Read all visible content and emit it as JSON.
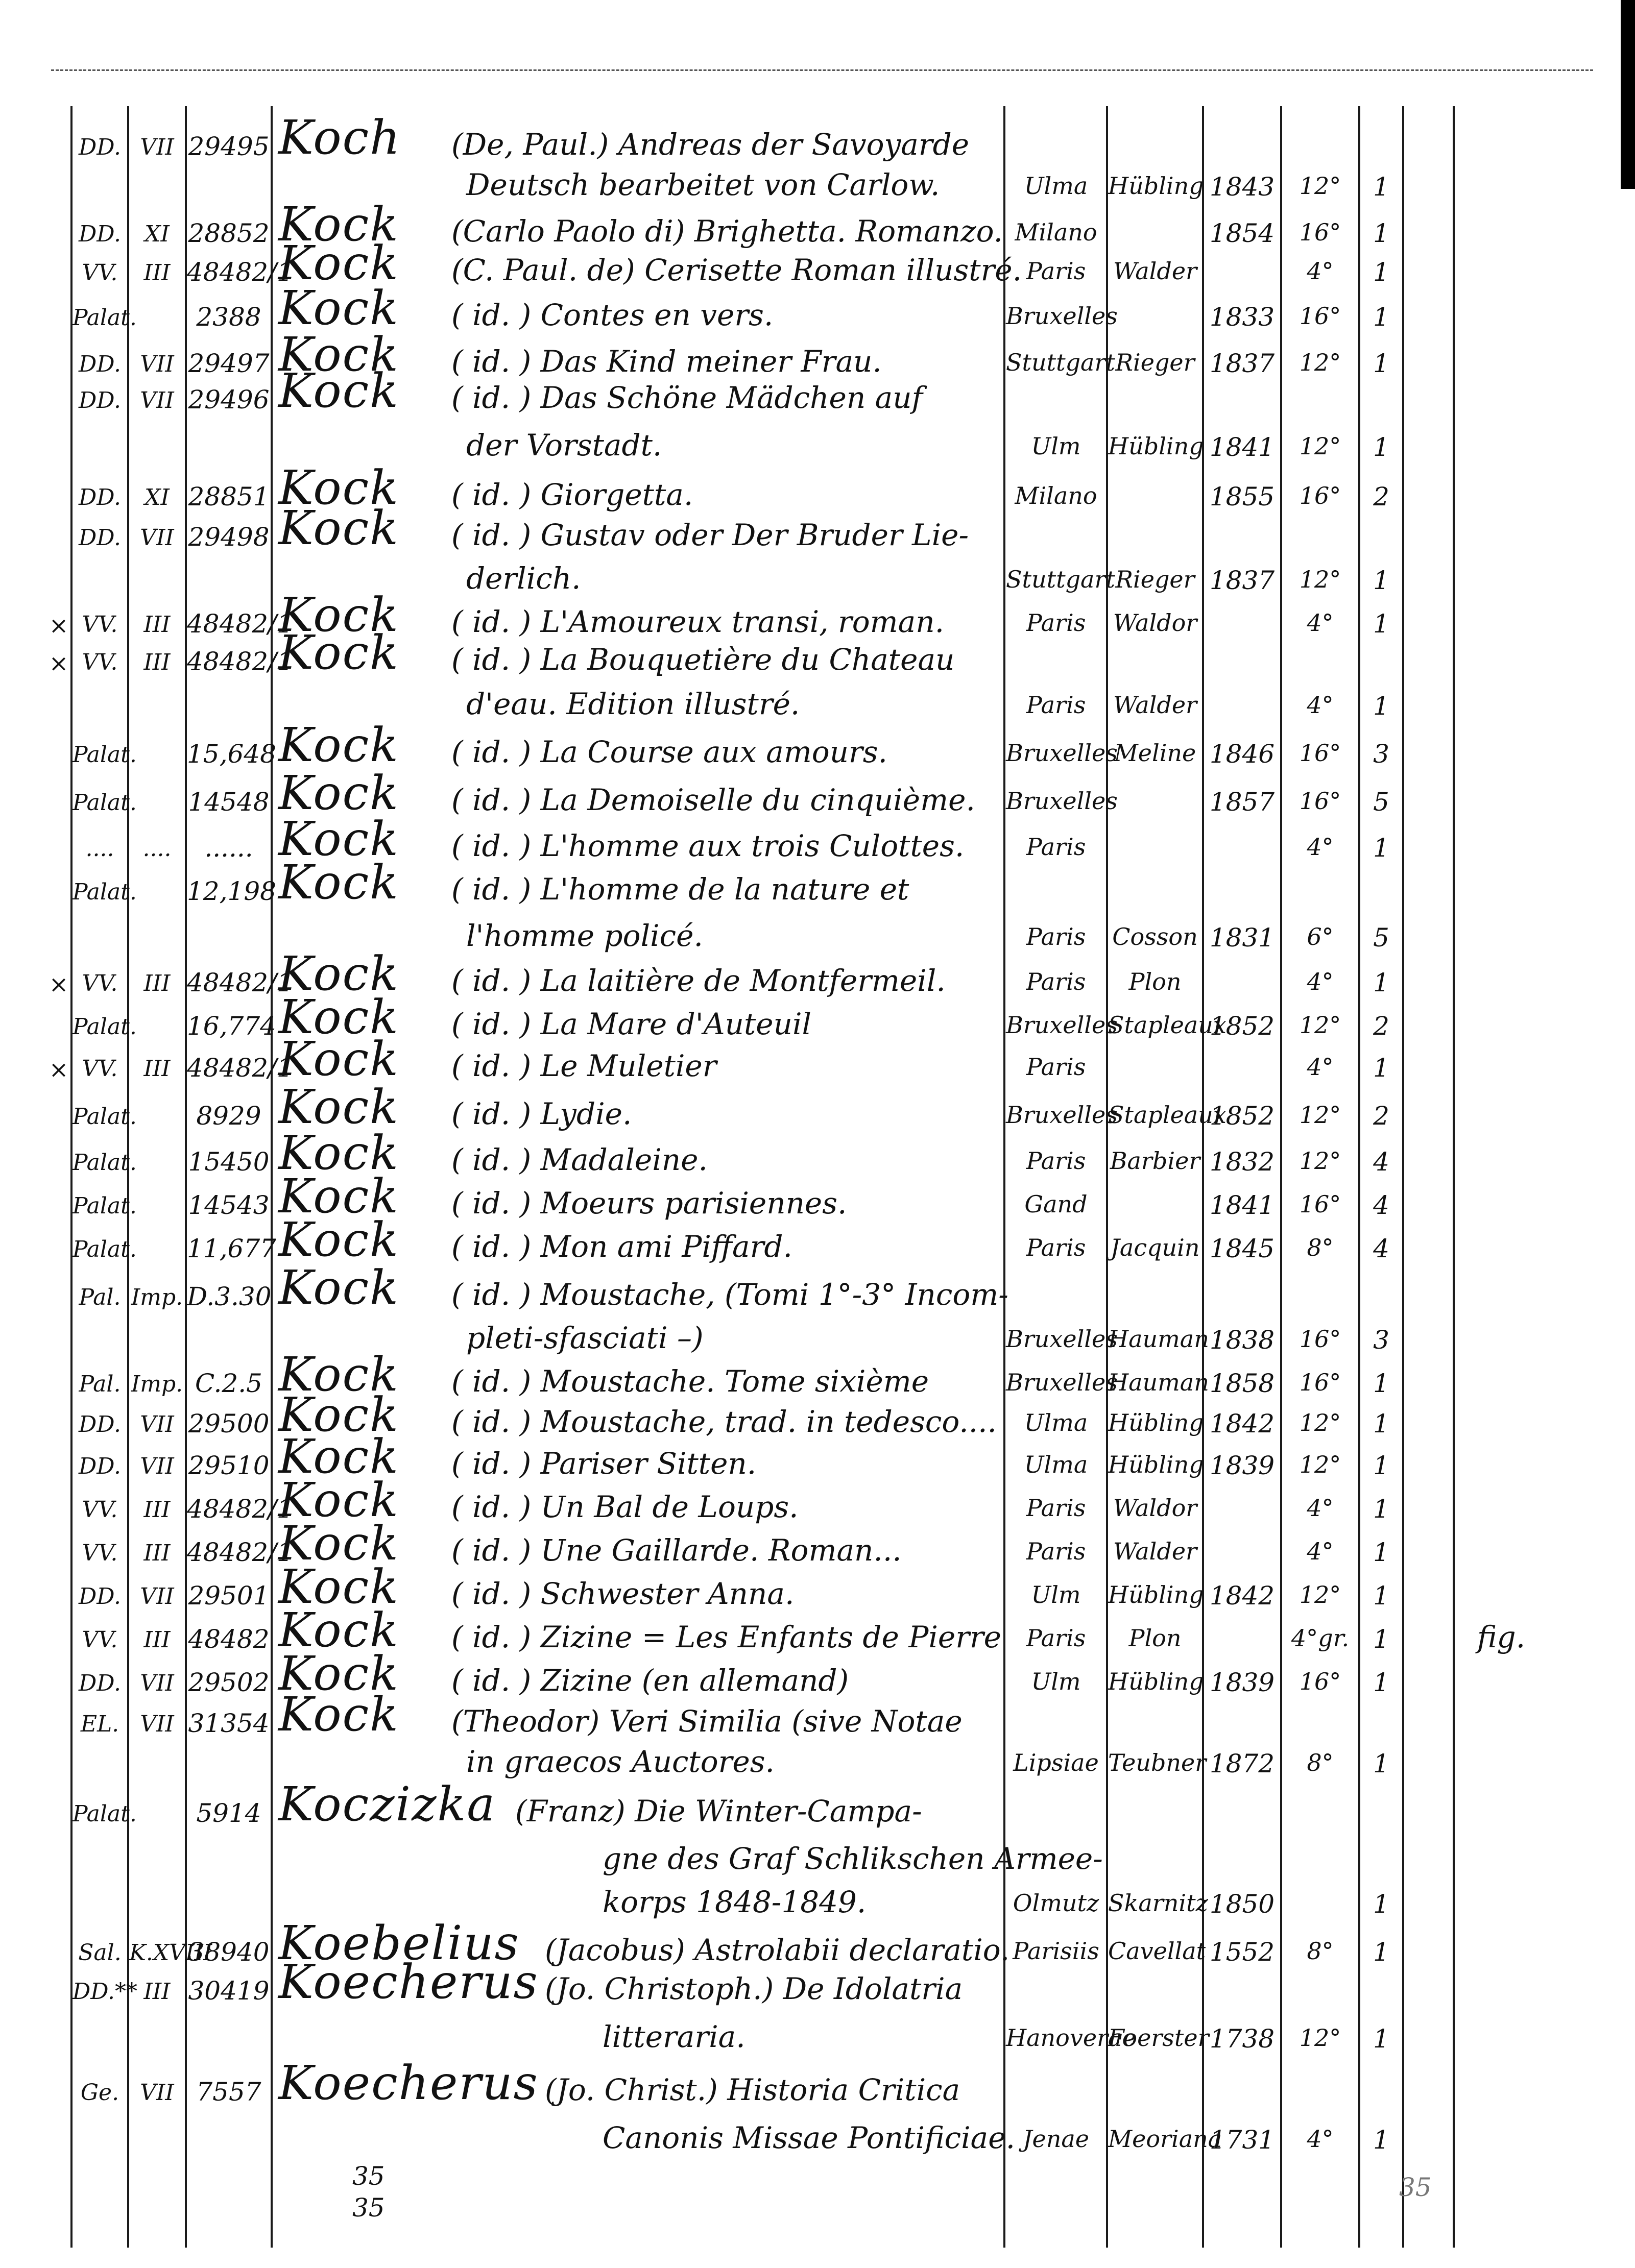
{
  "entries": [
    {
      "shelf": "DD.",
      "sub": "VII",
      "num": "29495",
      "author": "Koch",
      "title": "(De, Paul.) Andreas der Savoyarde",
      "cont": [
        "Deutsch bearbeitet von Carlow."
      ],
      "place": "Ulma",
      "publisher": "Hübling",
      "year": "1843",
      "format": "12°",
      "vols": "1"
    },
    {
      "shelf": "DD.",
      "sub": "XI",
      "num": "28852",
      "author": "Kock",
      "title": "(Carlo Paolo di) Brighetta. Romanzo.",
      "place": "Milano",
      "publisher": "",
      "year": "1854",
      "format": "16°",
      "vols": "1"
    },
    {
      "shelf": "VV.",
      "sub": "III",
      "num": "48482/1",
      "author": "Kock",
      "title": "(C. Paul. de) Cerisette Roman illustré.",
      "place": "Paris",
      "publisher": "Walder",
      "year": "",
      "format": "4°",
      "vols": "1"
    },
    {
      "shelf": "Palat.",
      "sub": "",
      "num": "2388",
      "author": "Kock",
      "title": "( id. ) Contes en vers.",
      "place": "Bruxelles",
      "publisher": "",
      "year": "1833",
      "format": "16°",
      "vols": "1"
    },
    {
      "shelf": "DD.",
      "sub": "VII",
      "num": "29497",
      "author": "Kock",
      "title": "( id. ) Das Kind meiner Frau.",
      "place": "Stuttgart",
      "publisher": "Rieger",
      "year": "1837",
      "format": "12°",
      "vols": "1"
    },
    {
      "shelf": "DD.",
      "sub": "VII",
      "num": "29496",
      "author": "Kock",
      "title": "( id. ) Das Schöne Mädchen auf",
      "cont": [
        "der Vorstadt."
      ],
      "place": "Ulm",
      "publisher": "Hübling",
      "year": "1841",
      "format": "12°",
      "vols": "1"
    },
    {
      "shelf": "DD.",
      "sub": "XI",
      "num": "28851",
      "author": "Kock",
      "title": "( id. ) Giorgetta.",
      "place": "Milano",
      "publisher": "",
      "year": "1855",
      "format": "16°",
      "vols": "2"
    },
    {
      "shelf": "DD.",
      "sub": "VII",
      "num": "29498",
      "author": "Kock",
      "title": "( id. ) Gustav oder Der Bruder Lie-",
      "cont": [
        "derlich."
      ],
      "place": "Stuttgart",
      "publisher": "Rieger",
      "year": "1837",
      "format": "12°",
      "vols": "1"
    },
    {
      "mark": "×",
      "shelf": "VV.",
      "sub": "III",
      "num": "48482/1",
      "author": "Kock",
      "title": "( id. ) L'Amoureux transi, roman.",
      "place": "Paris",
      "publisher": "Waldor",
      "year": "",
      "format": "4°",
      "vols": "1"
    },
    {
      "mark": "×",
      "shelf": "VV.",
      "sub": "III",
      "num": "48482/1",
      "author": "Kock",
      "title": "( id. ) La Bouquetière du Chateau",
      "cont": [
        "d'eau. Edition illustré."
      ],
      "place": "Paris",
      "publisher": "Walder",
      "year": "",
      "format": "4°",
      "vols": "1"
    },
    {
      "shelf": "Palat.",
      "sub": "",
      "num": "15,648",
      "author": "Kock",
      "title": "( id. ) La Course aux amours.",
      "place": "Bruxelles",
      "publisher": "Meline",
      "year": "1846",
      "format": "16°",
      "vols": "3"
    },
    {
      "shelf": "Palat.",
      "sub": "",
      "num": "14548",
      "author": "Kock",
      "title": "( id. ) La Demoiselle du cinquième.",
      "place": "Bruxelles",
      "publisher": "",
      "year": "1857",
      "format": "16°",
      "vols": "5"
    },
    {
      "shelf": "....",
      "sub": "....",
      "num": "......",
      "author": "Kock",
      "title": "( id. ) L'homme aux trois Culottes.",
      "place": "Paris",
      "publisher": "",
      "year": "",
      "format": "4°",
      "vols": "1"
    },
    {
      "shelf": "Palat.",
      "sub": "",
      "num": "12,198",
      "author": "Kock",
      "title": "( id. ) L'homme de la nature et",
      "cont": [
        "l'homme policé."
      ],
      "place": "Paris",
      "publisher": "Cosson",
      "year": "1831",
      "format": "6°",
      "vols": "5"
    },
    {
      "mark": "×",
      "shelf": "VV.",
      "sub": "III",
      "num": "48482/1",
      "author": "Kock",
      "title": "( id. ) La laitière de Montfermeil.",
      "place": "Paris",
      "publisher": "Plon",
      "year": "",
      "format": "4°",
      "vols": "1"
    },
    {
      "shelf": "Palat.",
      "sub": "",
      "num": "16,774",
      "author": "Kock",
      "title": "( id. ) La Mare d'Auteuil",
      "place": "Bruxelles",
      "publisher": "Stapleaux",
      "year": "1852",
      "format": "12°",
      "vols": "2"
    },
    {
      "mark": "×",
      "shelf": "VV.",
      "sub": "III",
      "num": "48482/1",
      "author": "Kock",
      "title": "( id. ) Le Muletier",
      "place": "Paris",
      "publisher": "",
      "year": "",
      "format": "4°",
      "vols": "1"
    },
    {
      "shelf": "Palat.",
      "sub": "",
      "num": "8929",
      "author": "Kock",
      "title": "( id. ) Lydie.",
      "place": "Bruxelles",
      "publisher": "Stapleaux",
      "year": "1852",
      "format": "12°",
      "vols": "2"
    },
    {
      "shelf": "Palat.",
      "sub": "",
      "num": "15450",
      "author": "Kock",
      "title": "( id. ) Madaleine.",
      "place": "Paris",
      "publisher": "Barbier",
      "year": "1832",
      "format": "12°",
      "vols": "4"
    },
    {
      "shelf": "Palat.",
      "sub": "",
      "num": "14543",
      "author": "Kock",
      "title": "( id. ) Moeurs parisiennes.",
      "place": "Gand",
      "publisher": "",
      "year": "1841",
      "format": "16°",
      "vols": "4"
    },
    {
      "shelf": "Palat.",
      "sub": "",
      "num": "11,677",
      "author": "Kock",
      "title": "( id. ) Mon ami Piffard.",
      "place": "Paris",
      "publisher": "Jacquin",
      "year": "1845",
      "format": "8°",
      "vols": "4"
    },
    {
      "shelf": "Pal.",
      "sub": "Imp.",
      "num": "D.3.30",
      "author": "Kock",
      "title": "( id. ) Moustache, (Tomi 1°-3° Incom-",
      "cont": [
        "pleti-sfasciati –)"
      ],
      "place": "Bruxelles",
      "publisher": "Hauman",
      "year": "1838",
      "format": "16°",
      "vols": "3"
    },
    {
      "shelf": "Pal.",
      "sub": "Imp.",
      "num": "C.2.5",
      "author": "Kock",
      "title": "( id. ) Moustache. Tome sixième",
      "place": "Bruxelles",
      "publisher": "Hauman",
      "year": "1858",
      "format": "16°",
      "vols": "1"
    },
    {
      "shelf": "DD.",
      "sub": "VII",
      "num": "29500",
      "author": "Kock",
      "title": "( id. ) Moustache, trad. in tedesco....",
      "place": "Ulma",
      "publisher": "Hübling",
      "year": "1842",
      "format": "12°",
      "vols": "1"
    },
    {
      "shelf": "DD.",
      "sub": "VII",
      "num": "29510",
      "author": "Kock",
      "title": "( id. ) Pariser Sitten.",
      "place": "Ulma",
      "publisher": "Hübling",
      "year": "1839",
      "format": "12°",
      "vols": "1"
    },
    {
      "shelf": "VV.",
      "sub": "III",
      "num": "48482/1",
      "author": "Kock",
      "title": "( id. ) Un Bal de Loups.",
      "place": "Paris",
      "publisher": "Waldor",
      "year": "",
      "format": "4°",
      "vols": "1"
    },
    {
      "shelf": "VV.",
      "sub": "III",
      "num": "48482/1",
      "author": "Kock",
      "title": "( id. ) Une Gaillarde. Roman...",
      "place": "Paris",
      "publisher": "Walder",
      "year": "",
      "format": "4°",
      "vols": "1"
    },
    {
      "shelf": "DD.",
      "sub": "VII",
      "num": "29501",
      "author": "Kock",
      "title": "( id. ) Schwester Anna.",
      "place": "Ulm",
      "publisher": "Hübling",
      "year": "1842",
      "format": "12°",
      "vols": "1"
    },
    {
      "shelf": "VV.",
      "sub": "III",
      "num": "48482",
      "author": "Kock",
      "title": "( id. ) Zizine = Les Enfants de Pierre",
      "place": "Paris",
      "publisher": "Plon",
      "year": "",
      "format": "4°gr.",
      "vols": "1",
      "note": "fig."
    },
    {
      "shelf": "DD.",
      "sub": "VII",
      "num": "29502",
      "author": "Kock",
      "title": "( id. ) Zizine (en allemand)",
      "place": "Ulm",
      "publisher": "Hübling",
      "year": "1839",
      "format": "16°",
      "vols": "1"
    },
    {
      "shelf": "EL.",
      "sub": "VII",
      "num": "31354",
      "author": "Kock",
      "title": "(Theodor) Veri Similia (sive Notae",
      "cont": [
        "in graecos Auctores."
      ],
      "place": "Lipsiae",
      "publisher": "Teubner",
      "year": "1872",
      "format": "8°",
      "vols": "1"
    },
    {
      "shelf": "Palat.",
      "sub": "",
      "num": "5914",
      "author": "Koczizka",
      "title": "(Franz) Die Winter-Campa-",
      "cont": [
        "gne des Graf Schlikschen Armee-",
        "korps 1848-1849."
      ],
      "place": "Olmutz",
      "publisher": "Skarnitz",
      "year": "1850",
      "format": "",
      "vols": "1"
    },
    {
      "shelf": "Sal.",
      "sub": "K.XVIII",
      "num": "38940",
      "author": "Koebelius",
      "title": "(Jacobus) Astrolabii declaratio.",
      "place": "Parisiis",
      "publisher": "Cavellat",
      "year": "1552",
      "format": "8°",
      "vols": "1"
    },
    {
      "shelf": "DD.**",
      "sub": "III",
      "num": "30419",
      "author": "Koecherus",
      "title": "(Jo. Christoph.) De Idolatria",
      "cont": [
        "litteraria."
      ],
      "place": "Hanoverae",
      "publisher": "Foerster",
      "year": "1738",
      "format": "12°",
      "vols": "1"
    },
    {
      "shelf": "Ge.",
      "sub": "VII",
      "num": "7557",
      "author": "Koecherus",
      "title": "(Jo. Christ.) Historia Critica",
      "cont": [
        "Canonis Missae Pontificiae."
      ],
      "place": "Jenae",
      "publisher": "Meoriana",
      "year": "1731",
      "format": "4°",
      "vols": "1"
    }
  ],
  "footer": {
    "count_a": "35",
    "count_b": "35",
    "count_c": "35"
  }
}
